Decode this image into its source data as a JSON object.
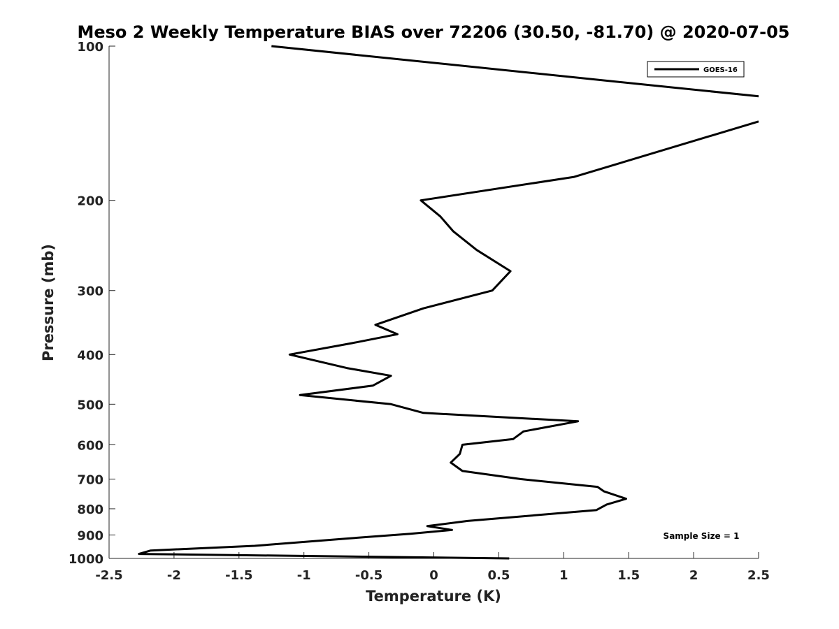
{
  "chart_data": {
    "type": "line",
    "title": "Meso 2 Weekly Temperature BIAS over 72206 (30.50, -81.70) @ 2020-07-05",
    "xlabel": "Temperature (K)",
    "ylabel": "Pressure (mb)",
    "xlim": [
      -2.5,
      2.5
    ],
    "ylim": [
      100,
      1000
    ],
    "y_scale": "log",
    "y_inverted": true,
    "grid": false,
    "legend_position": "top-right",
    "x_ticks": [
      "-2.5",
      "-2",
      "-1.5",
      "-1",
      "-0.5",
      "0",
      "0.5",
      "1",
      "1.5",
      "2",
      "2.5"
    ],
    "y_ticks": [
      "100",
      "200",
      "300",
      "400",
      "500",
      "600",
      "700",
      "800",
      "900",
      "1000"
    ],
    "series": [
      {
        "name": "GOES-16",
        "color": "#000000",
        "segments": [
          [
            {
              "x": -1.25,
              "p": 100
            },
            {
              "x": 2.5,
              "p": 125.3
            }
          ],
          [
            {
              "x": 2.5,
              "p": 140.3
            },
            {
              "x": 1.08,
              "p": 180
            },
            {
              "x": -0.1,
              "p": 200
            },
            {
              "x": 0.05,
              "p": 215
            },
            {
              "x": 0.15,
              "p": 230
            },
            {
              "x": 0.33,
              "p": 250
            },
            {
              "x": 0.59,
              "p": 275
            },
            {
              "x": 0.45,
              "p": 300
            },
            {
              "x": -0.08,
              "p": 325
            },
            {
              "x": -0.45,
              "p": 350
            },
            {
              "x": -0.28,
              "p": 365
            },
            {
              "x": -0.63,
              "p": 380
            },
            {
              "x": -1.11,
              "p": 400
            },
            {
              "x": -0.67,
              "p": 425
            },
            {
              "x": -0.33,
              "p": 440
            },
            {
              "x": -0.47,
              "p": 460
            },
            {
              "x": -1.03,
              "p": 480
            },
            {
              "x": -0.33,
              "p": 500
            },
            {
              "x": -0.08,
              "p": 520
            },
            {
              "x": 1.11,
              "p": 540
            },
            {
              "x": 0.69,
              "p": 565
            },
            {
              "x": 0.61,
              "p": 585
            },
            {
              "x": 0.22,
              "p": 600
            },
            {
              "x": 0.2,
              "p": 625
            },
            {
              "x": 0.13,
              "p": 650
            },
            {
              "x": 0.22,
              "p": 675
            },
            {
              "x": 0.67,
              "p": 700
            },
            {
              "x": 1.26,
              "p": 725
            },
            {
              "x": 1.31,
              "p": 740
            },
            {
              "x": 1.48,
              "p": 765
            },
            {
              "x": 1.33,
              "p": 785
            },
            {
              "x": 1.25,
              "p": 805
            },
            {
              "x": 0.26,
              "p": 845
            },
            {
              "x": -0.05,
              "p": 865
            },
            {
              "x": 0.14,
              "p": 880
            },
            {
              "x": -0.18,
              "p": 895
            },
            {
              "x": -0.68,
              "p": 915
            },
            {
              "x": -1.38,
              "p": 945
            },
            {
              "x": -2.18,
              "p": 965
            },
            {
              "x": -2.27,
              "p": 980
            },
            {
              "x": 0.58,
              "p": 1000
            }
          ]
        ]
      }
    ],
    "annotation": "Sample Size = 1"
  }
}
